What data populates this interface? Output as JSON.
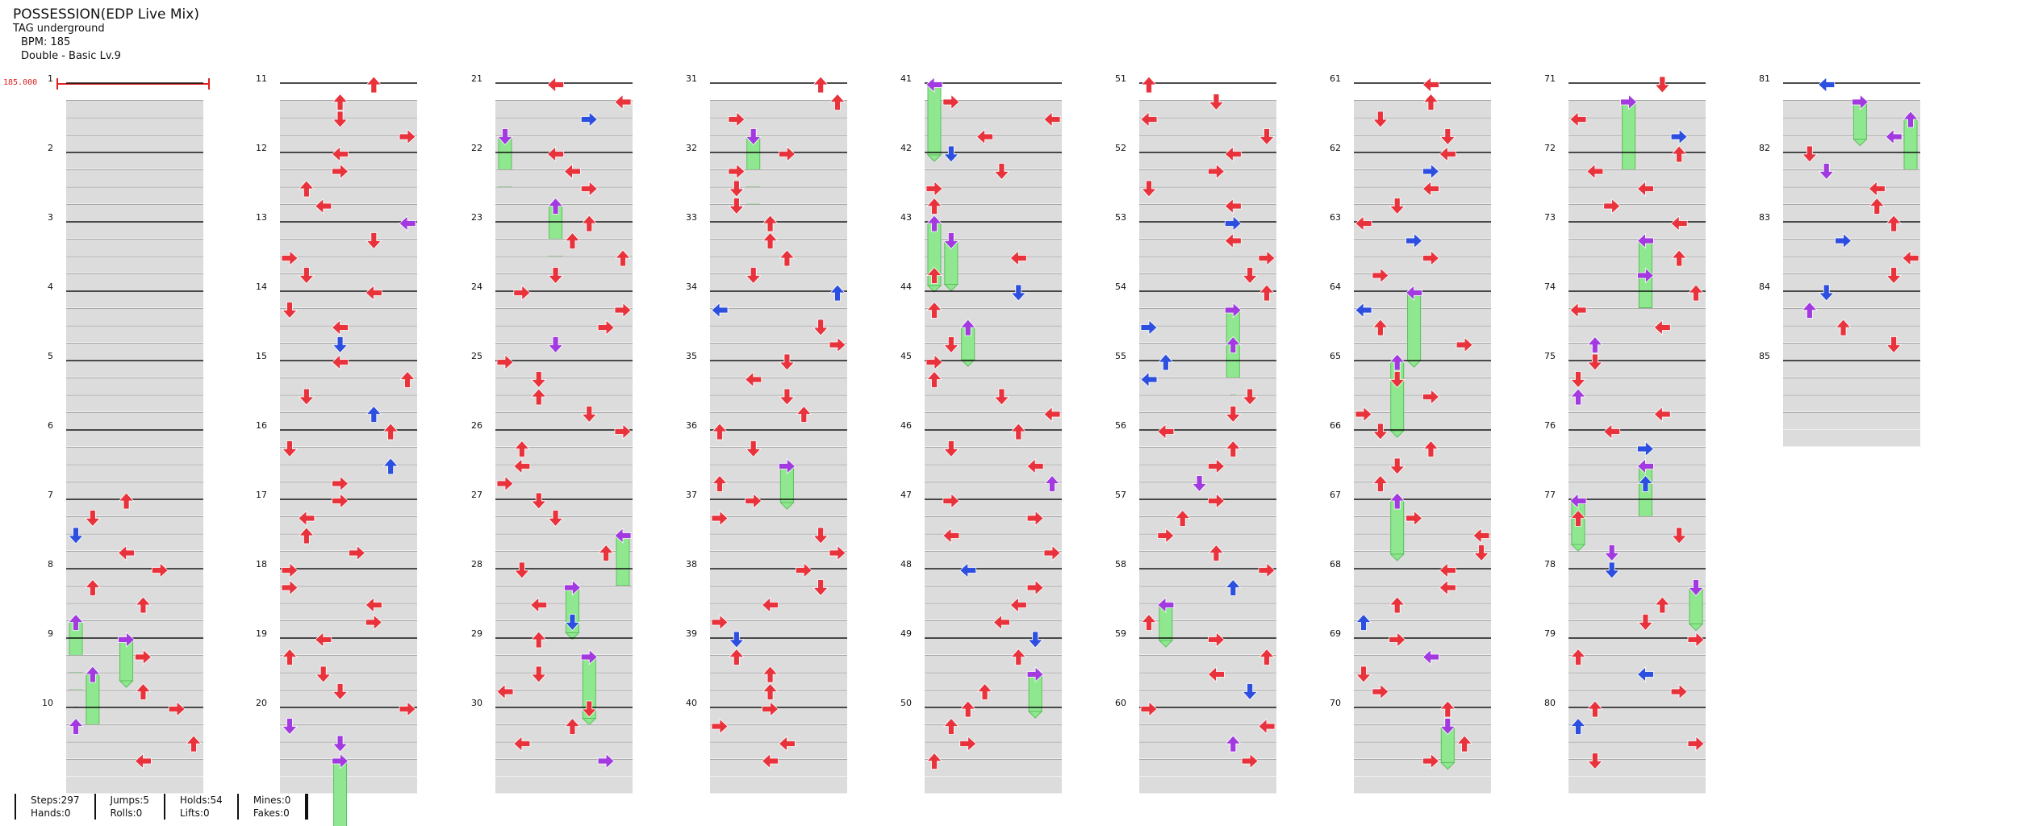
{
  "song": {
    "title": "POSSESSION(EDP Live Mix)",
    "artist": "TAG underground",
    "bpm_label": "BPM: 185",
    "difficulty": "Double - Basic  Lv.9"
  },
  "bpm_marker": "185.000",
  "measures": {
    "first": 1,
    "last": 85
  },
  "stats": [
    {
      "a": "Steps:297",
      "b": "Hands:0"
    },
    {
      "a": "Jumps:5",
      "b": "Rolls:0"
    },
    {
      "a": "Holds:54",
      "b": "Lifts:0"
    },
    {
      "a": "Mines:0",
      "b": "Fakes:0"
    }
  ],
  "colors": {
    "quarter_note": "#e8323c",
    "eighth_note": "#2d4fe0",
    "sixteenth_note": "#a23ae0",
    "hold": "#8fe88f",
    "row_shade": "#dcdcdc",
    "bpm": "#e02020"
  }
}
